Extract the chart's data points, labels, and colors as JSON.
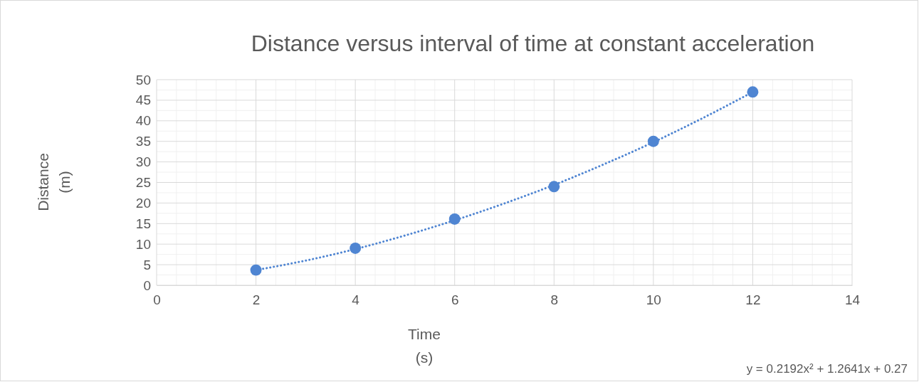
{
  "chart_data": {
    "type": "scatter",
    "title": "Distance versus interval of time at constant acceleration",
    "xlabel": "Time (s)",
    "ylabel": "Distance (m)",
    "xlim": [
      0,
      14
    ],
    "xticks": [
      0,
      2,
      4,
      6,
      8,
      10,
      12,
      14
    ],
    "ylim": [
      0,
      50
    ],
    "yticks": [
      0,
      5,
      10,
      15,
      20,
      25,
      30,
      35,
      40,
      45,
      50
    ],
    "grid": true,
    "marker": "circle",
    "series": [
      {
        "color": "#4f85d2",
        "x": [
          2,
          4,
          6,
          8,
          10,
          12
        ],
        "values": [
          3.7,
          9,
          16.1,
          24,
          35,
          47
        ]
      },
      {
        "type": "line",
        "color": "#4f85d2",
        "line_style": "dotted",
        "marker": "none",
        "x": [
          2,
          3,
          4,
          5,
          6,
          7,
          8,
          9,
          10,
          11,
          12
        ],
        "values": [
          3.7,
          6.0,
          8.8,
          12.1,
          15.8,
          19.9,
          24.4,
          29.4,
          34.8,
          40.7,
          47.0
        ]
      }
    ],
    "annotations": [
      "y = 0.2192x² + 1.2641x + 0.27"
    ]
  }
}
